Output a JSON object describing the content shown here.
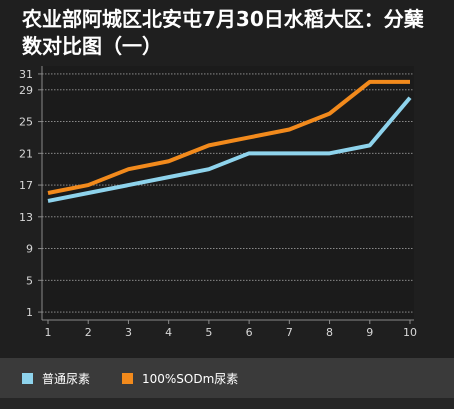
{
  "chart_data": {
    "type": "line",
    "title": "农业部阿城区北安屯7月30日水稻大区：分蘖数对比图（一）",
    "x": [
      1,
      2,
      3,
      4,
      5,
      6,
      7,
      8,
      9,
      10
    ],
    "yticks": [
      1,
      5,
      9,
      13,
      17,
      21,
      25,
      29,
      31
    ],
    "ylim": [
      0,
      32
    ],
    "xlabel": "",
    "ylabel": "",
    "grid": "horizontal dashed",
    "legend_position": "bottom",
    "series": [
      {
        "name": "普通尿素",
        "color": "#8ed3ec",
        "values": [
          15,
          16,
          17,
          18,
          19,
          21,
          21,
          21,
          22,
          28
        ]
      },
      {
        "name": "100%SODm尿素",
        "color": "#f28a1c",
        "values": [
          16,
          17,
          19,
          20,
          22,
          23,
          24,
          26,
          30,
          30
        ]
      }
    ]
  }
}
